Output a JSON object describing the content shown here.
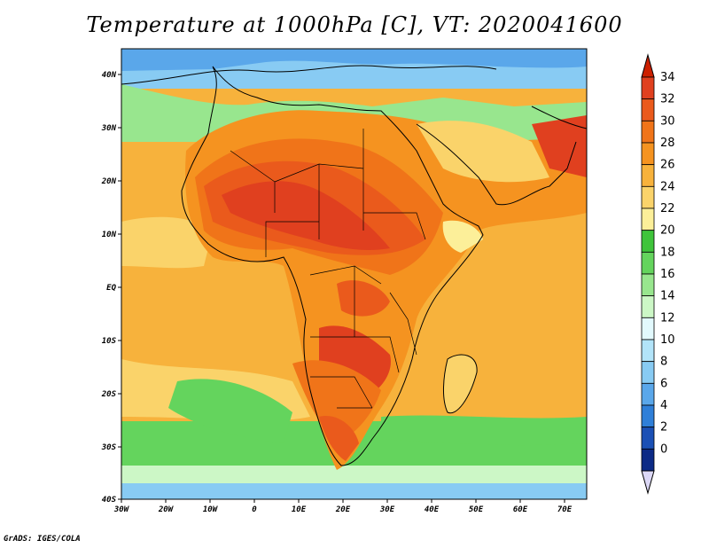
{
  "title": "Temperature at 1000hPa [C], VT: 2020041600",
  "credit": "GrADS: IGES/COLA",
  "map": {
    "lon_labels": [
      "30W",
      "20W",
      "10W",
      "0",
      "10E",
      "20E",
      "30E",
      "40E",
      "50E",
      "60E",
      "70E"
    ],
    "lat_labels": [
      "40N",
      "30N",
      "20N",
      "10N",
      "EQ",
      "10S",
      "20S",
      "30S",
      "40S"
    ]
  },
  "colorbar": {
    "labels": [
      "34",
      "32",
      "30",
      "28",
      "26",
      "24",
      "22",
      "20",
      "18",
      "16",
      "14",
      "12",
      "10",
      "8",
      "6",
      "4",
      "2",
      "0"
    ],
    "colors": [
      "#e0401f",
      "#ea5a1c",
      "#f07419",
      "#f59320",
      "#f7b23c",
      "#fad36a",
      "#fcef99",
      "#3fc43b",
      "#64d45d",
      "#98e68e",
      "#ccf7c6",
      "#e2f9fd",
      "#b2e4f9",
      "#88cbf3",
      "#5aa7ea",
      "#2f7fd8",
      "#1b50b5",
      "#0c2a86"
    ],
    "over_color": "#cc2000",
    "under_color": "#dcd8f6"
  },
  "legend_colors": {
    "sea_cool": "#98e68e",
    "land_hot": "#e0401f"
  }
}
